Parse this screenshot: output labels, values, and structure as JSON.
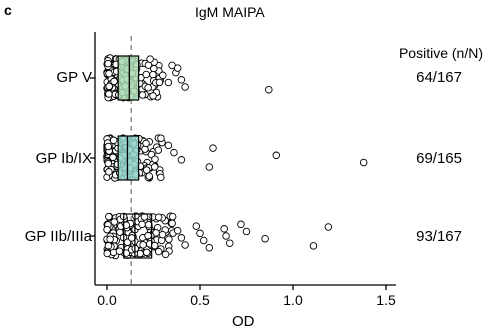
{
  "panel_letter": "c",
  "chart_data": {
    "type": "box-and-scatter",
    "title": "IgM MAIPA",
    "xlabel": "OD",
    "ylabel": "",
    "xlim": [
      -0.05,
      1.55
    ],
    "xticks": [
      0.0,
      0.5,
      1.0,
      1.5
    ],
    "xtick_labels": [
      "0.0",
      "0.5",
      "1.0",
      "1.5"
    ],
    "cutoff_line": 0.13,
    "positive_header": "Positive (n/N)",
    "categories": [
      "GP V",
      "GP Ib/IX",
      "GP IIb/IIIa"
    ],
    "positives": [
      "64/167",
      "69/165",
      "93/167"
    ],
    "box_colors": [
      "#a8d8b0",
      "#8cd0c6",
      "#ffffff"
    ],
    "boxes": [
      {
        "q1": 0.06,
        "median": 0.12,
        "q3": 0.17
      },
      {
        "q1": 0.06,
        "median": 0.11,
        "q3": 0.17
      },
      {
        "q1": 0.09,
        "median": 0.15,
        "q3": 0.24
      }
    ],
    "outliers": [
      [
        0.35,
        0.37,
        0.4,
        0.42,
        0.38,
        0.3,
        0.33,
        0.87
      ],
      [
        0.33,
        0.36,
        0.4,
        0.55,
        0.57,
        0.91,
        1.38
      ],
      [
        0.35,
        0.38,
        0.4,
        0.42,
        0.48,
        0.5,
        0.52,
        0.55,
        0.63,
        0.64,
        0.66,
        0.72,
        0.75,
        0.85,
        1.11,
        1.19
      ]
    ]
  }
}
